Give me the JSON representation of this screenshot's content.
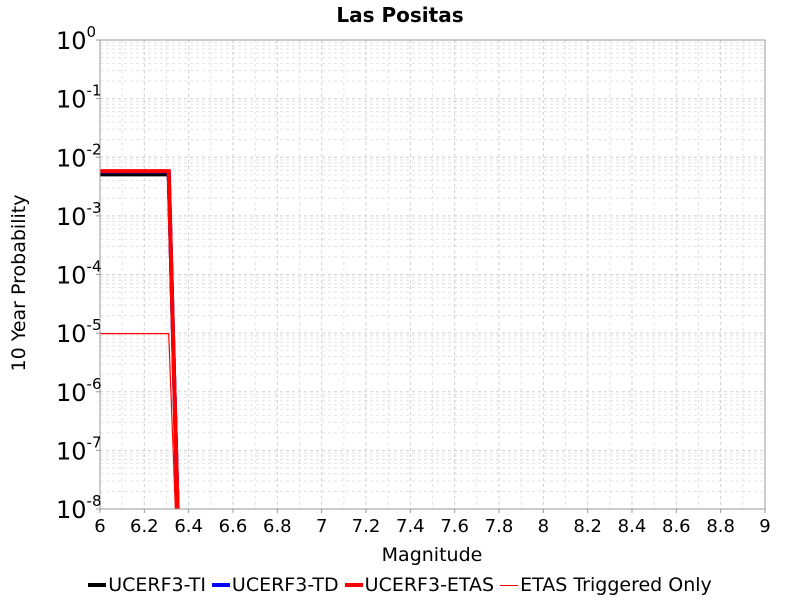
{
  "chart_data": {
    "type": "line",
    "title": "Las Positas",
    "xlabel": "Magnitude",
    "ylabel": "10 Year Probability",
    "y_scale": "log",
    "xlim": [
      6,
      9
    ],
    "ylim": [
      1e-08,
      1
    ],
    "grid": true,
    "legend_position": "bottom",
    "x_ticks": [
      "6",
      "6.2",
      "6.4",
      "6.6",
      "6.8",
      "7",
      "7.2",
      "7.4",
      "7.6",
      "7.8",
      "8",
      "8.2",
      "8.4",
      "8.6",
      "8.8",
      "9"
    ],
    "y_ticks": [
      {
        "base": "10",
        "exp": "0"
      },
      {
        "base": "10",
        "exp": "-1"
      },
      {
        "base": "10",
        "exp": "-2"
      },
      {
        "base": "10",
        "exp": "-3"
      },
      {
        "base": "10",
        "exp": "-4"
      },
      {
        "base": "10",
        "exp": "-5"
      },
      {
        "base": "10",
        "exp": "-6"
      },
      {
        "base": "10",
        "exp": "-7"
      },
      {
        "base": "10",
        "exp": "-8"
      }
    ],
    "series": [
      {
        "name": "UCERF3-TI",
        "color": "#000000",
        "line": "thick",
        "x": [
          6.0,
          6.3,
          6.31,
          6.35,
          6.36
        ],
        "y": [
          0.0051,
          0.0051,
          0.0051,
          1e-08,
          1e-09
        ]
      },
      {
        "name": "UCERF3-TD",
        "color": "#0000ff",
        "line": "thick",
        "x": [
          6.0,
          6.3,
          6.31,
          6.35,
          6.36
        ],
        "y": [
          0.0057,
          0.0057,
          0.0057,
          1e-08,
          1e-09
        ]
      },
      {
        "name": "UCERF3-ETAS",
        "color": "#ff0000",
        "line": "thick",
        "x": [
          6.0,
          6.3,
          6.31,
          6.35,
          6.36
        ],
        "y": [
          0.0058,
          0.0058,
          0.0058,
          1e-08,
          1e-09
        ]
      },
      {
        "name": "ETAS Triggered Only",
        "color": "#ff0000",
        "line": "thin",
        "x": [
          6.0,
          6.3,
          6.31,
          6.34,
          6.35
        ],
        "y": [
          9.8e-06,
          9.8e-06,
          9.8e-06,
          1e-08,
          1e-09
        ]
      }
    ]
  }
}
